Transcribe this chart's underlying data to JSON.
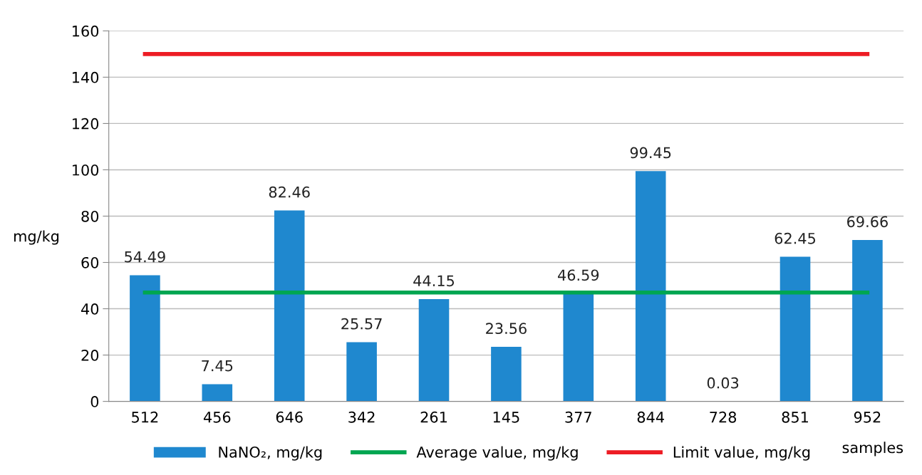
{
  "chart_data": {
    "type": "bar",
    "xlabel": "samples",
    "ylabel": "mg/kg",
    "categories": [
      "512",
      "456",
      "646",
      "342",
      "261",
      "145",
      "377",
      "844",
      "728",
      "851",
      "952"
    ],
    "series": [
      {
        "name": "NaNO₂, mg/kg",
        "color": "#1f88cf",
        "values": [
          54.49,
          7.45,
          82.46,
          25.57,
          44.15,
          23.56,
          46.59,
          99.45,
          0.03,
          62.45,
          69.66
        ],
        "data_labels": true
      },
      {
        "name": "Average value, mg/kg",
        "type": "line",
        "color": "#00a651",
        "values": [
          47,
          47,
          47,
          47,
          47,
          47,
          47,
          47,
          47,
          47,
          47
        ]
      },
      {
        "name": "Limit value, mg/kg",
        "type": "line",
        "color": "#ed1c24",
        "values": [
          150,
          150,
          150,
          150,
          150,
          150,
          150,
          150,
          150,
          150,
          150
        ]
      }
    ],
    "ylim": [
      0,
      160
    ],
    "yticks": [
      0,
      20,
      40,
      60,
      80,
      100,
      120,
      140,
      160
    ],
    "grid": "y",
    "legend": "bottom",
    "marker": "none",
    "line_style": "solid"
  }
}
